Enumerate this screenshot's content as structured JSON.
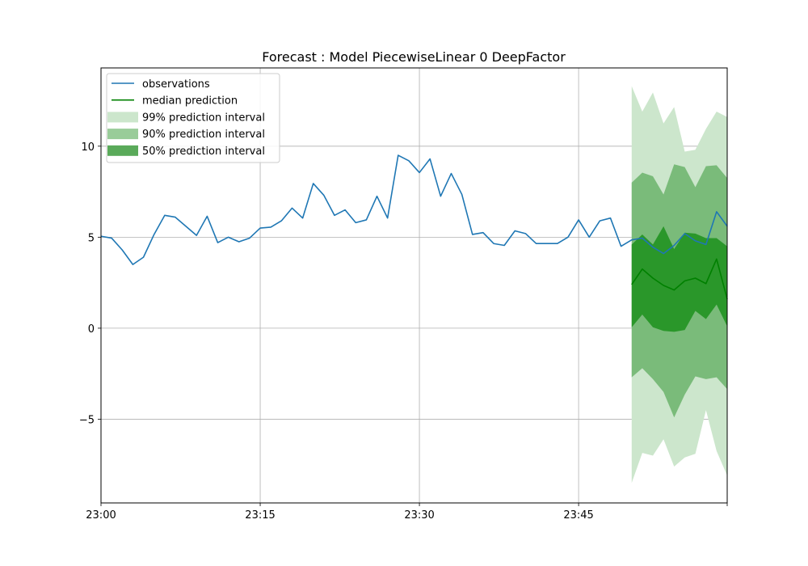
{
  "chart_data": {
    "type": "line",
    "title": "Forecast : Model PiecewiseLinear 0 DeepFactor",
    "xlabel": "",
    "ylabel": "",
    "x_axis": {
      "unit": "minute",
      "range_minutes_from_23_00": [
        0,
        59
      ],
      "ticks": [
        {
          "minute": 0,
          "label": "23:00"
        },
        {
          "minute": 15,
          "label": "23:15"
        },
        {
          "minute": 30,
          "label": "23:30"
        },
        {
          "minute": 45,
          "label": "23:45"
        },
        {
          "minute": 59,
          "label": ""
        }
      ]
    },
    "y_axis": {
      "ylim": [
        -9.6,
        14.3
      ],
      "ticks": [
        {
          "value": -5,
          "label": "−5"
        },
        {
          "value": 0,
          "label": "0"
        },
        {
          "value": 5,
          "label": "5"
        },
        {
          "value": 10,
          "label": "10"
        }
      ]
    },
    "grid": true,
    "legend_position": "top-left",
    "legend": [
      {
        "label": "observations",
        "kind": "line",
        "color": "#1f77b4"
      },
      {
        "label": "median prediction",
        "kind": "line",
        "color": "#008000"
      },
      {
        "label": "99% prediction interval",
        "kind": "patch",
        "color": "#cce6cc"
      },
      {
        "label": "90% prediction interval",
        "kind": "patch",
        "color": "#99cc99"
      },
      {
        "label": "50% prediction interval",
        "kind": "patch",
        "color": "#5aaa5a"
      }
    ],
    "series": [
      {
        "name": "observations",
        "color": "#1f77b4",
        "x_minutes": [
          0,
          1,
          2,
          3,
          4,
          5,
          6,
          7,
          8,
          9,
          10,
          11,
          12,
          13,
          14,
          15,
          16,
          17,
          18,
          19,
          20,
          21,
          22,
          23,
          24,
          25,
          26,
          27,
          28,
          29,
          30,
          31,
          32,
          33,
          34,
          35,
          36,
          37,
          38,
          39,
          40,
          41,
          42,
          43,
          44,
          45,
          46,
          47,
          48,
          49,
          50,
          51,
          52,
          53,
          54,
          55,
          56,
          57,
          58,
          59
        ],
        "values": [
          5.05,
          4.95,
          4.3,
          3.5,
          3.9,
          5.15,
          6.2,
          6.1,
          5.6,
          5.1,
          6.15,
          4.7,
          5.0,
          4.75,
          4.95,
          5.5,
          5.55,
          5.9,
          6.6,
          6.05,
          7.95,
          7.3,
          6.2,
          6.5,
          5.8,
          5.95,
          7.25,
          6.05,
          9.5,
          9.2,
          8.55,
          9.3,
          7.25,
          8.5,
          7.35,
          5.15,
          5.25,
          4.65,
          4.55,
          5.35,
          5.2,
          4.65,
          4.65,
          4.65,
          5.0,
          5.95,
          5.0,
          5.9,
          6.05,
          4.5,
          4.85,
          4.95,
          4.45,
          4.1,
          4.55,
          5.2,
          4.8,
          4.6,
          6.4,
          5.6
        ]
      }
    ],
    "forecast": {
      "x_minutes": [
        50,
        51,
        52,
        53,
        54,
        55,
        56,
        57,
        58,
        59
      ],
      "median": [
        2.4,
        3.25,
        2.75,
        2.35,
        2.1,
        2.6,
        2.75,
        2.45,
        3.8,
        1.6
      ],
      "interval_50": {
        "lower": [
          0.05,
          0.75,
          0.05,
          -0.15,
          -0.2,
          -0.1,
          0.95,
          0.5,
          1.3,
          0.1
        ],
        "upper": [
          4.6,
          5.15,
          4.6,
          5.6,
          4.35,
          5.25,
          5.2,
          4.95,
          4.95,
          4.5
        ]
      },
      "interval_90": {
        "lower": [
          -2.7,
          -2.2,
          -2.8,
          -3.5,
          -4.9,
          -3.65,
          -2.65,
          -2.8,
          -2.7,
          -3.35
        ],
        "upper": [
          8.0,
          8.55,
          8.35,
          7.35,
          9.0,
          8.85,
          7.75,
          8.9,
          8.95,
          8.25
        ]
      },
      "interval_99": {
        "lower": [
          -8.5,
          -6.85,
          -7.0,
          -6.1,
          -7.6,
          -7.1,
          -6.9,
          -4.5,
          -6.75,
          -8.1
        ],
        "upper": [
          13.3,
          11.9,
          12.95,
          11.25,
          12.15,
          9.7,
          9.8,
          10.95,
          11.9,
          11.6
        ]
      }
    }
  }
}
